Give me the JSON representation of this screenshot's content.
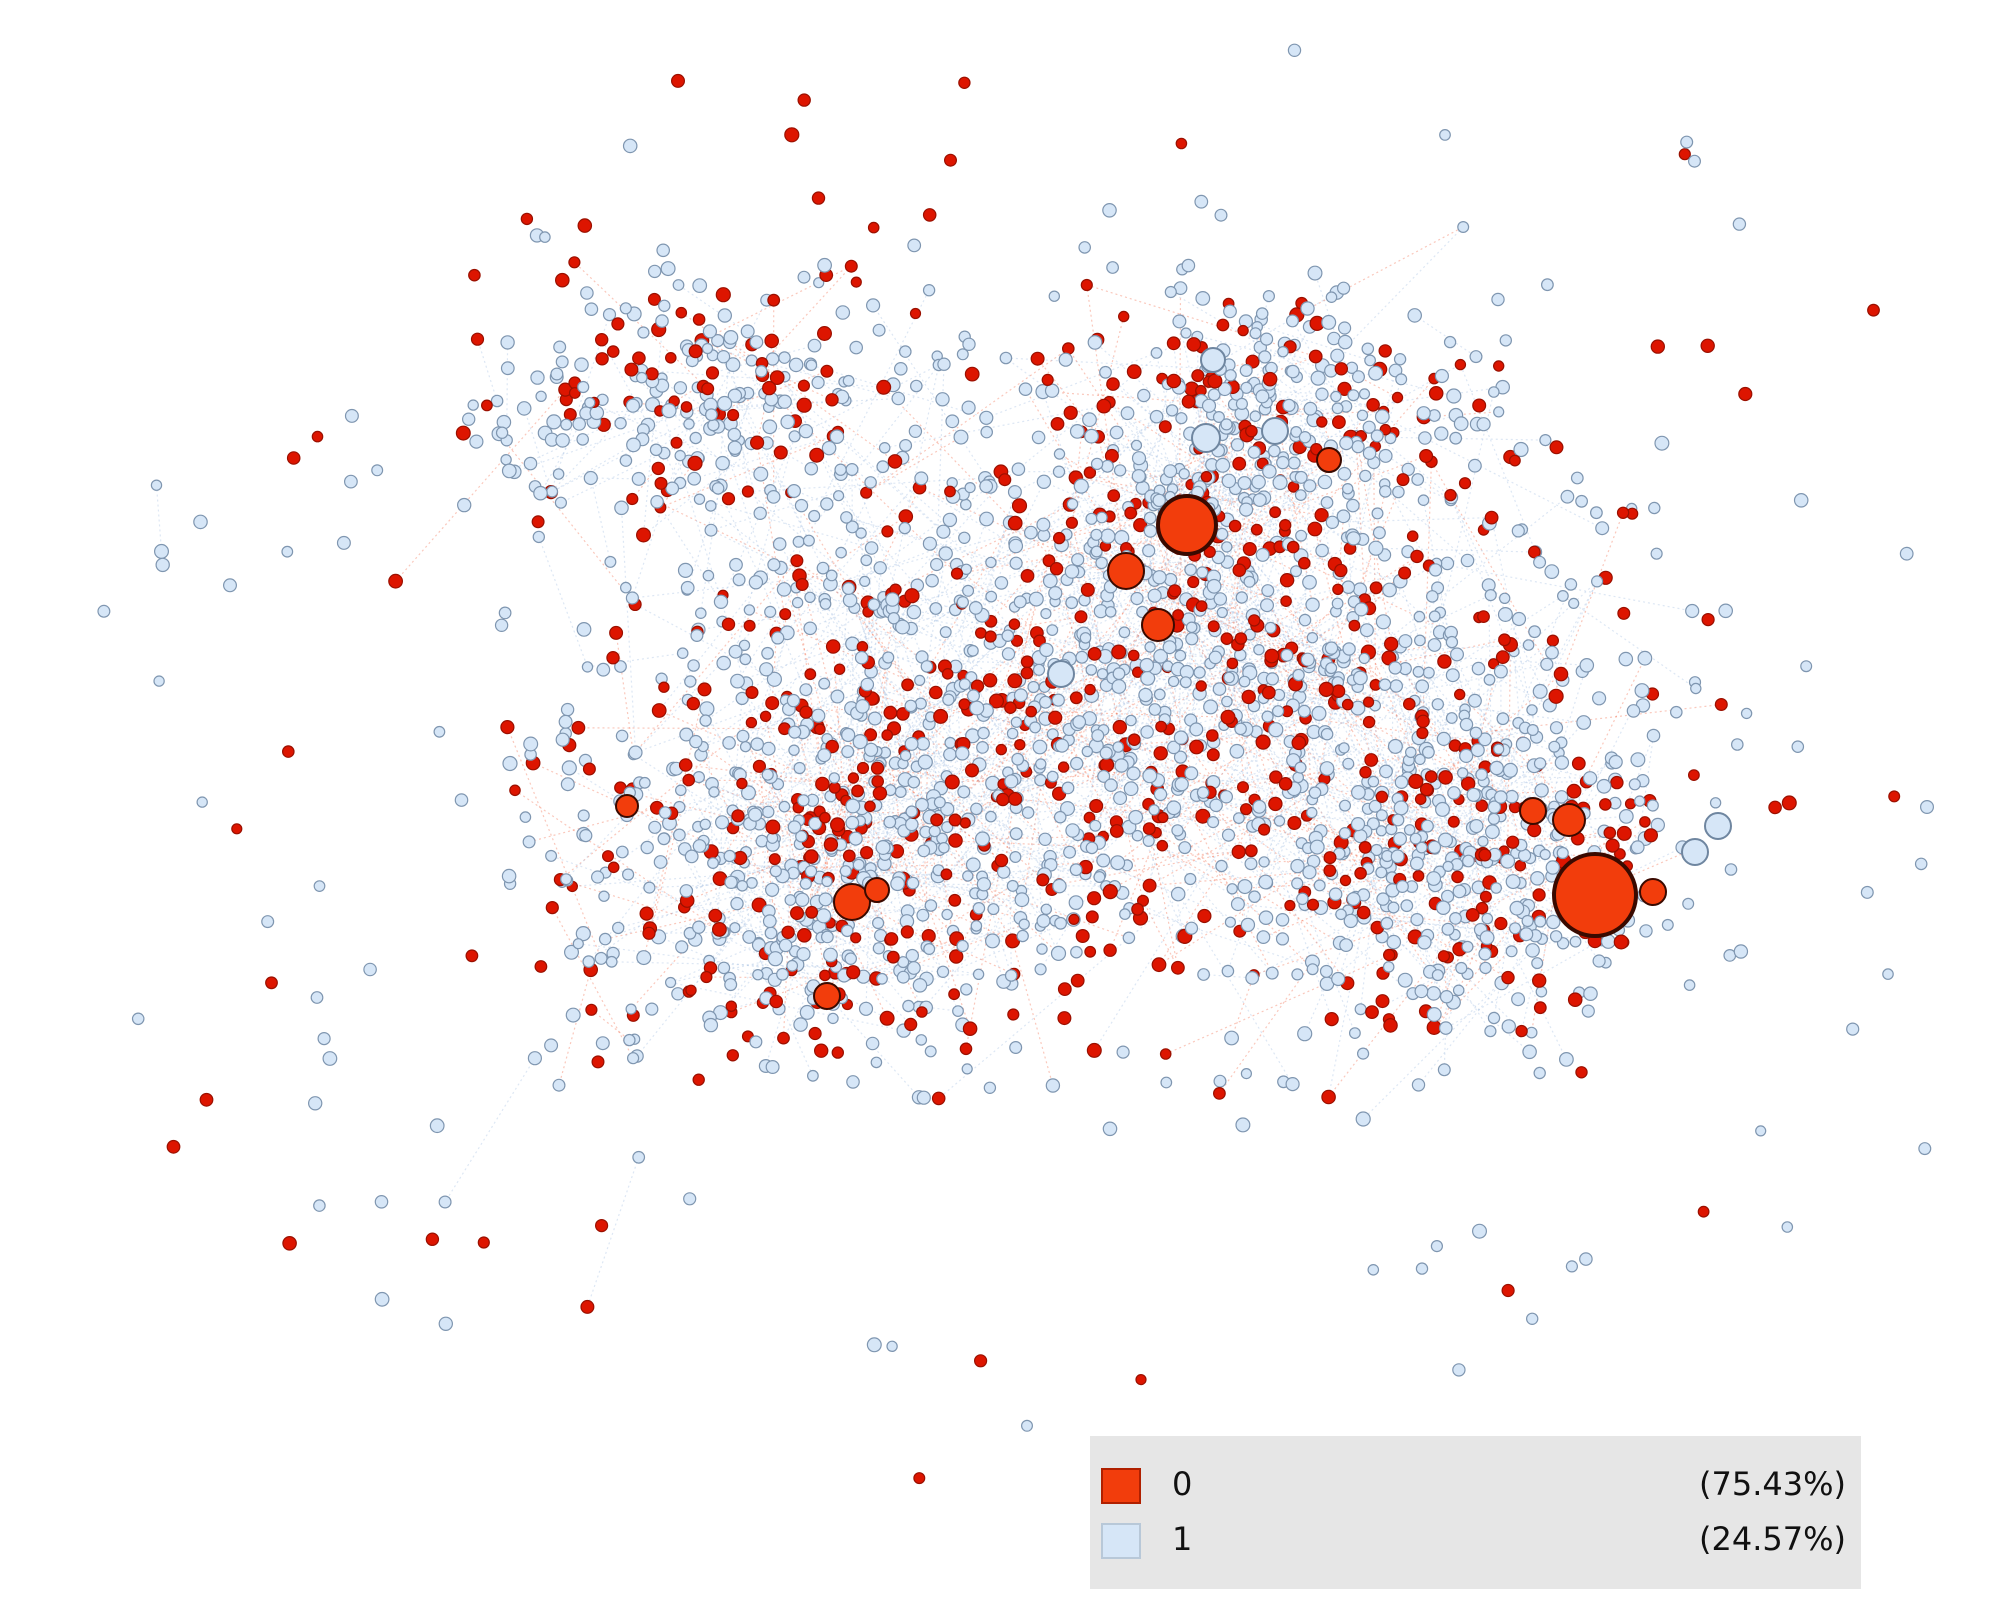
{
  "legend": {
    "items": [
      {
        "label": "0",
        "percent": "(75.43%)",
        "color": "#f23d0c"
      },
      {
        "label": "1",
        "percent": "(24.57%)",
        "color": "#d6e6f7"
      }
    ]
  }
}
